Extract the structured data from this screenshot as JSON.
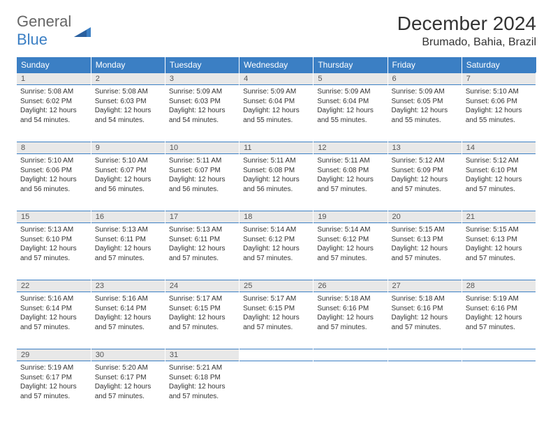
{
  "logo": {
    "text_gray": "General",
    "text_blue": "Blue"
  },
  "title": "December 2024",
  "location": "Brumado, Bahia, Brazil",
  "colors": {
    "header_bg": "#3b7fc4",
    "header_fg": "#ffffff",
    "daynum_bg": "#e8e8e8",
    "border": "#3b7fc4",
    "text": "#333333"
  },
  "day_headers": [
    "Sunday",
    "Monday",
    "Tuesday",
    "Wednesday",
    "Thursday",
    "Friday",
    "Saturday"
  ],
  "weeks": [
    [
      {
        "n": "1",
        "sr": "5:08 AM",
        "ss": "6:02 PM",
        "dl": "12 hours and 54 minutes."
      },
      {
        "n": "2",
        "sr": "5:08 AM",
        "ss": "6:03 PM",
        "dl": "12 hours and 54 minutes."
      },
      {
        "n": "3",
        "sr": "5:09 AM",
        "ss": "6:03 PM",
        "dl": "12 hours and 54 minutes."
      },
      {
        "n": "4",
        "sr": "5:09 AM",
        "ss": "6:04 PM",
        "dl": "12 hours and 55 minutes."
      },
      {
        "n": "5",
        "sr": "5:09 AM",
        "ss": "6:04 PM",
        "dl": "12 hours and 55 minutes."
      },
      {
        "n": "6",
        "sr": "5:09 AM",
        "ss": "6:05 PM",
        "dl": "12 hours and 55 minutes."
      },
      {
        "n": "7",
        "sr": "5:10 AM",
        "ss": "6:06 PM",
        "dl": "12 hours and 55 minutes."
      }
    ],
    [
      {
        "n": "8",
        "sr": "5:10 AM",
        "ss": "6:06 PM",
        "dl": "12 hours and 56 minutes."
      },
      {
        "n": "9",
        "sr": "5:10 AM",
        "ss": "6:07 PM",
        "dl": "12 hours and 56 minutes."
      },
      {
        "n": "10",
        "sr": "5:11 AM",
        "ss": "6:07 PM",
        "dl": "12 hours and 56 minutes."
      },
      {
        "n": "11",
        "sr": "5:11 AM",
        "ss": "6:08 PM",
        "dl": "12 hours and 56 minutes."
      },
      {
        "n": "12",
        "sr": "5:11 AM",
        "ss": "6:08 PM",
        "dl": "12 hours and 57 minutes."
      },
      {
        "n": "13",
        "sr": "5:12 AM",
        "ss": "6:09 PM",
        "dl": "12 hours and 57 minutes."
      },
      {
        "n": "14",
        "sr": "5:12 AM",
        "ss": "6:10 PM",
        "dl": "12 hours and 57 minutes."
      }
    ],
    [
      {
        "n": "15",
        "sr": "5:13 AM",
        "ss": "6:10 PM",
        "dl": "12 hours and 57 minutes."
      },
      {
        "n": "16",
        "sr": "5:13 AM",
        "ss": "6:11 PM",
        "dl": "12 hours and 57 minutes."
      },
      {
        "n": "17",
        "sr": "5:13 AM",
        "ss": "6:11 PM",
        "dl": "12 hours and 57 minutes."
      },
      {
        "n": "18",
        "sr": "5:14 AM",
        "ss": "6:12 PM",
        "dl": "12 hours and 57 minutes."
      },
      {
        "n": "19",
        "sr": "5:14 AM",
        "ss": "6:12 PM",
        "dl": "12 hours and 57 minutes."
      },
      {
        "n": "20",
        "sr": "5:15 AM",
        "ss": "6:13 PM",
        "dl": "12 hours and 57 minutes."
      },
      {
        "n": "21",
        "sr": "5:15 AM",
        "ss": "6:13 PM",
        "dl": "12 hours and 57 minutes."
      }
    ],
    [
      {
        "n": "22",
        "sr": "5:16 AM",
        "ss": "6:14 PM",
        "dl": "12 hours and 57 minutes."
      },
      {
        "n": "23",
        "sr": "5:16 AM",
        "ss": "6:14 PM",
        "dl": "12 hours and 57 minutes."
      },
      {
        "n": "24",
        "sr": "5:17 AM",
        "ss": "6:15 PM",
        "dl": "12 hours and 57 minutes."
      },
      {
        "n": "25",
        "sr": "5:17 AM",
        "ss": "6:15 PM",
        "dl": "12 hours and 57 minutes."
      },
      {
        "n": "26",
        "sr": "5:18 AM",
        "ss": "6:16 PM",
        "dl": "12 hours and 57 minutes."
      },
      {
        "n": "27",
        "sr": "5:18 AM",
        "ss": "6:16 PM",
        "dl": "12 hours and 57 minutes."
      },
      {
        "n": "28",
        "sr": "5:19 AM",
        "ss": "6:16 PM",
        "dl": "12 hours and 57 minutes."
      }
    ],
    [
      {
        "n": "29",
        "sr": "5:19 AM",
        "ss": "6:17 PM",
        "dl": "12 hours and 57 minutes."
      },
      {
        "n": "30",
        "sr": "5:20 AM",
        "ss": "6:17 PM",
        "dl": "12 hours and 57 minutes."
      },
      {
        "n": "31",
        "sr": "5:21 AM",
        "ss": "6:18 PM",
        "dl": "12 hours and 57 minutes."
      },
      null,
      null,
      null,
      null
    ]
  ],
  "labels": {
    "sunrise": "Sunrise:",
    "sunset": "Sunset:",
    "daylight": "Daylight:"
  }
}
